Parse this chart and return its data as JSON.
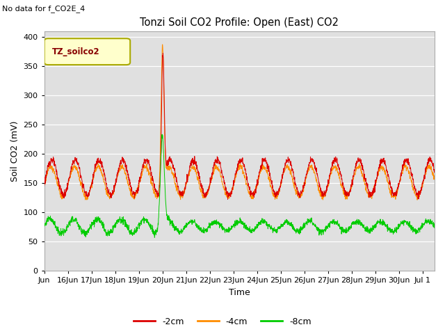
{
  "title": "Tonzi Soil CO2 Profile: Open (East) CO2",
  "no_data_text": "No data for f_CO2E_4",
  "ylabel": "Soil CO2 (mV)",
  "xlabel": "Time",
  "legend_label": "TZ_soilco2",
  "ylim": [
    0,
    410
  ],
  "yticks": [
    0,
    50,
    100,
    150,
    200,
    250,
    300,
    350,
    400
  ],
  "bg_color": "#e0e0e0",
  "line_colors": {
    "cm2": "#dd0000",
    "cm4": "#ff8c00",
    "cm8": "#00cc00"
  },
  "legend_items": [
    "-2cm",
    "-4cm",
    "-8cm"
  ],
  "legend_colors": [
    "#dd0000",
    "#ff8c00",
    "#00cc00"
  ]
}
